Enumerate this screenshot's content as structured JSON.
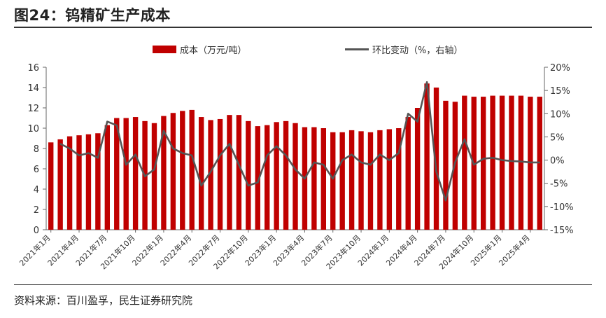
{
  "figure": {
    "title": "图24：钨精矿生产成本",
    "source": "资料来源：百川盈孚，民生证券研究院"
  },
  "chart_data": {
    "type": "bar+line",
    "categories": [
      "2021年1月",
      "2021年2月",
      "2021年3月",
      "2021年4月",
      "2021年5月",
      "2021年6月",
      "2021年7月",
      "2021年8月",
      "2021年9月",
      "2021年10月",
      "2021年11月",
      "2021年12月",
      "2022年1月",
      "2022年2月",
      "2022年3月",
      "2022年4月",
      "2022年5月",
      "2022年6月",
      "2022年7月",
      "2022年8月",
      "2022年9月",
      "2022年10月",
      "2022年11月",
      "2022年12月",
      "2023年1月",
      "2023年2月",
      "2023年3月",
      "2023年4月",
      "2023年5月",
      "2023年6月",
      "2023年7月",
      "2023年8月",
      "2023年9月",
      "2023年10月",
      "2023年11月",
      "2023年12月",
      "2024年1月",
      "2024年2月",
      "2024年3月",
      "2024年4月",
      "2024年5月",
      "2024年6月",
      "2024年7月",
      "2024年8月",
      "2024年9月",
      "2024年10月",
      "2024年11月",
      "2024年12月",
      "2025年1月",
      "2025年2月",
      "2025年3月",
      "2025年4月",
      "2025年5月"
    ],
    "xtick_labels": [
      "2021年1月",
      "2021年4月",
      "2021年7月",
      "2021年10月",
      "2022年1月",
      "2022年4月",
      "2022年7月",
      "2022年10月",
      "2023年1月",
      "2023年4月",
      "2023年7月",
      "2023年10月",
      "2024年1月",
      "2024年4月",
      "2024年7月",
      "2024年10月",
      "2025年1月",
      "2025年4月"
    ],
    "series": [
      {
        "name": "成本（万元/吨）",
        "kind": "bar",
        "axis": "left",
        "color": "#C00000",
        "values": [
          8.6,
          8.9,
          9.2,
          9.3,
          9.4,
          9.5,
          10.3,
          11.0,
          11.0,
          11.1,
          10.7,
          10.5,
          11.2,
          11.5,
          11.7,
          11.8,
          11.1,
          10.8,
          10.9,
          11.3,
          11.3,
          10.7,
          10.2,
          10.3,
          10.6,
          10.7,
          10.5,
          10.1,
          10.1,
          10.0,
          9.6,
          9.6,
          9.8,
          9.7,
          9.6,
          9.8,
          9.9,
          10.0,
          11.1,
          12.0,
          14.4,
          14.0,
          12.7,
          12.6,
          13.2,
          13.1,
          13.1,
          13.2,
          13.2,
          13.2,
          13.2,
          13.1,
          13.1
        ]
      },
      {
        "name": "环比变动（%，右轴）",
        "kind": "line",
        "axis": "right",
        "color": "#555555",
        "values": [
          null,
          3.5,
          2.5,
          1.0,
          1.5,
          0.5,
          8.3,
          7.5,
          -1.0,
          1.2,
          -3.5,
          -2.0,
          6.3,
          2.5,
          1.5,
          1.0,
          -5.5,
          -2.5,
          1.0,
          3.5,
          -1.0,
          -5.5,
          -4.8,
          1.0,
          3.0,
          1.0,
          -2.0,
          -4.0,
          -0.5,
          -1.0,
          -4.0,
          0.0,
          1.2,
          -0.5,
          -1.0,
          1.2,
          0.0,
          1.5,
          10.0,
          8.3,
          16.8,
          -2.5,
          -8.7,
          -0.5,
          4.5,
          -1.0,
          0.3,
          0.5,
          0.0,
          -0.2,
          -0.3,
          -0.5,
          -0.5
        ]
      }
    ],
    "y_left": {
      "min": 0,
      "max": 16,
      "ticks": [
        "0",
        "2",
        "4",
        "6",
        "8",
        "10",
        "12",
        "14",
        "16"
      ]
    },
    "y_right": {
      "min": -15,
      "max": 20,
      "ticks": [
        "-15%",
        "-10%",
        "-5%",
        "0%",
        "5%",
        "10%",
        "15%",
        "20%"
      ]
    },
    "legend": "top-center",
    "grid": false
  }
}
